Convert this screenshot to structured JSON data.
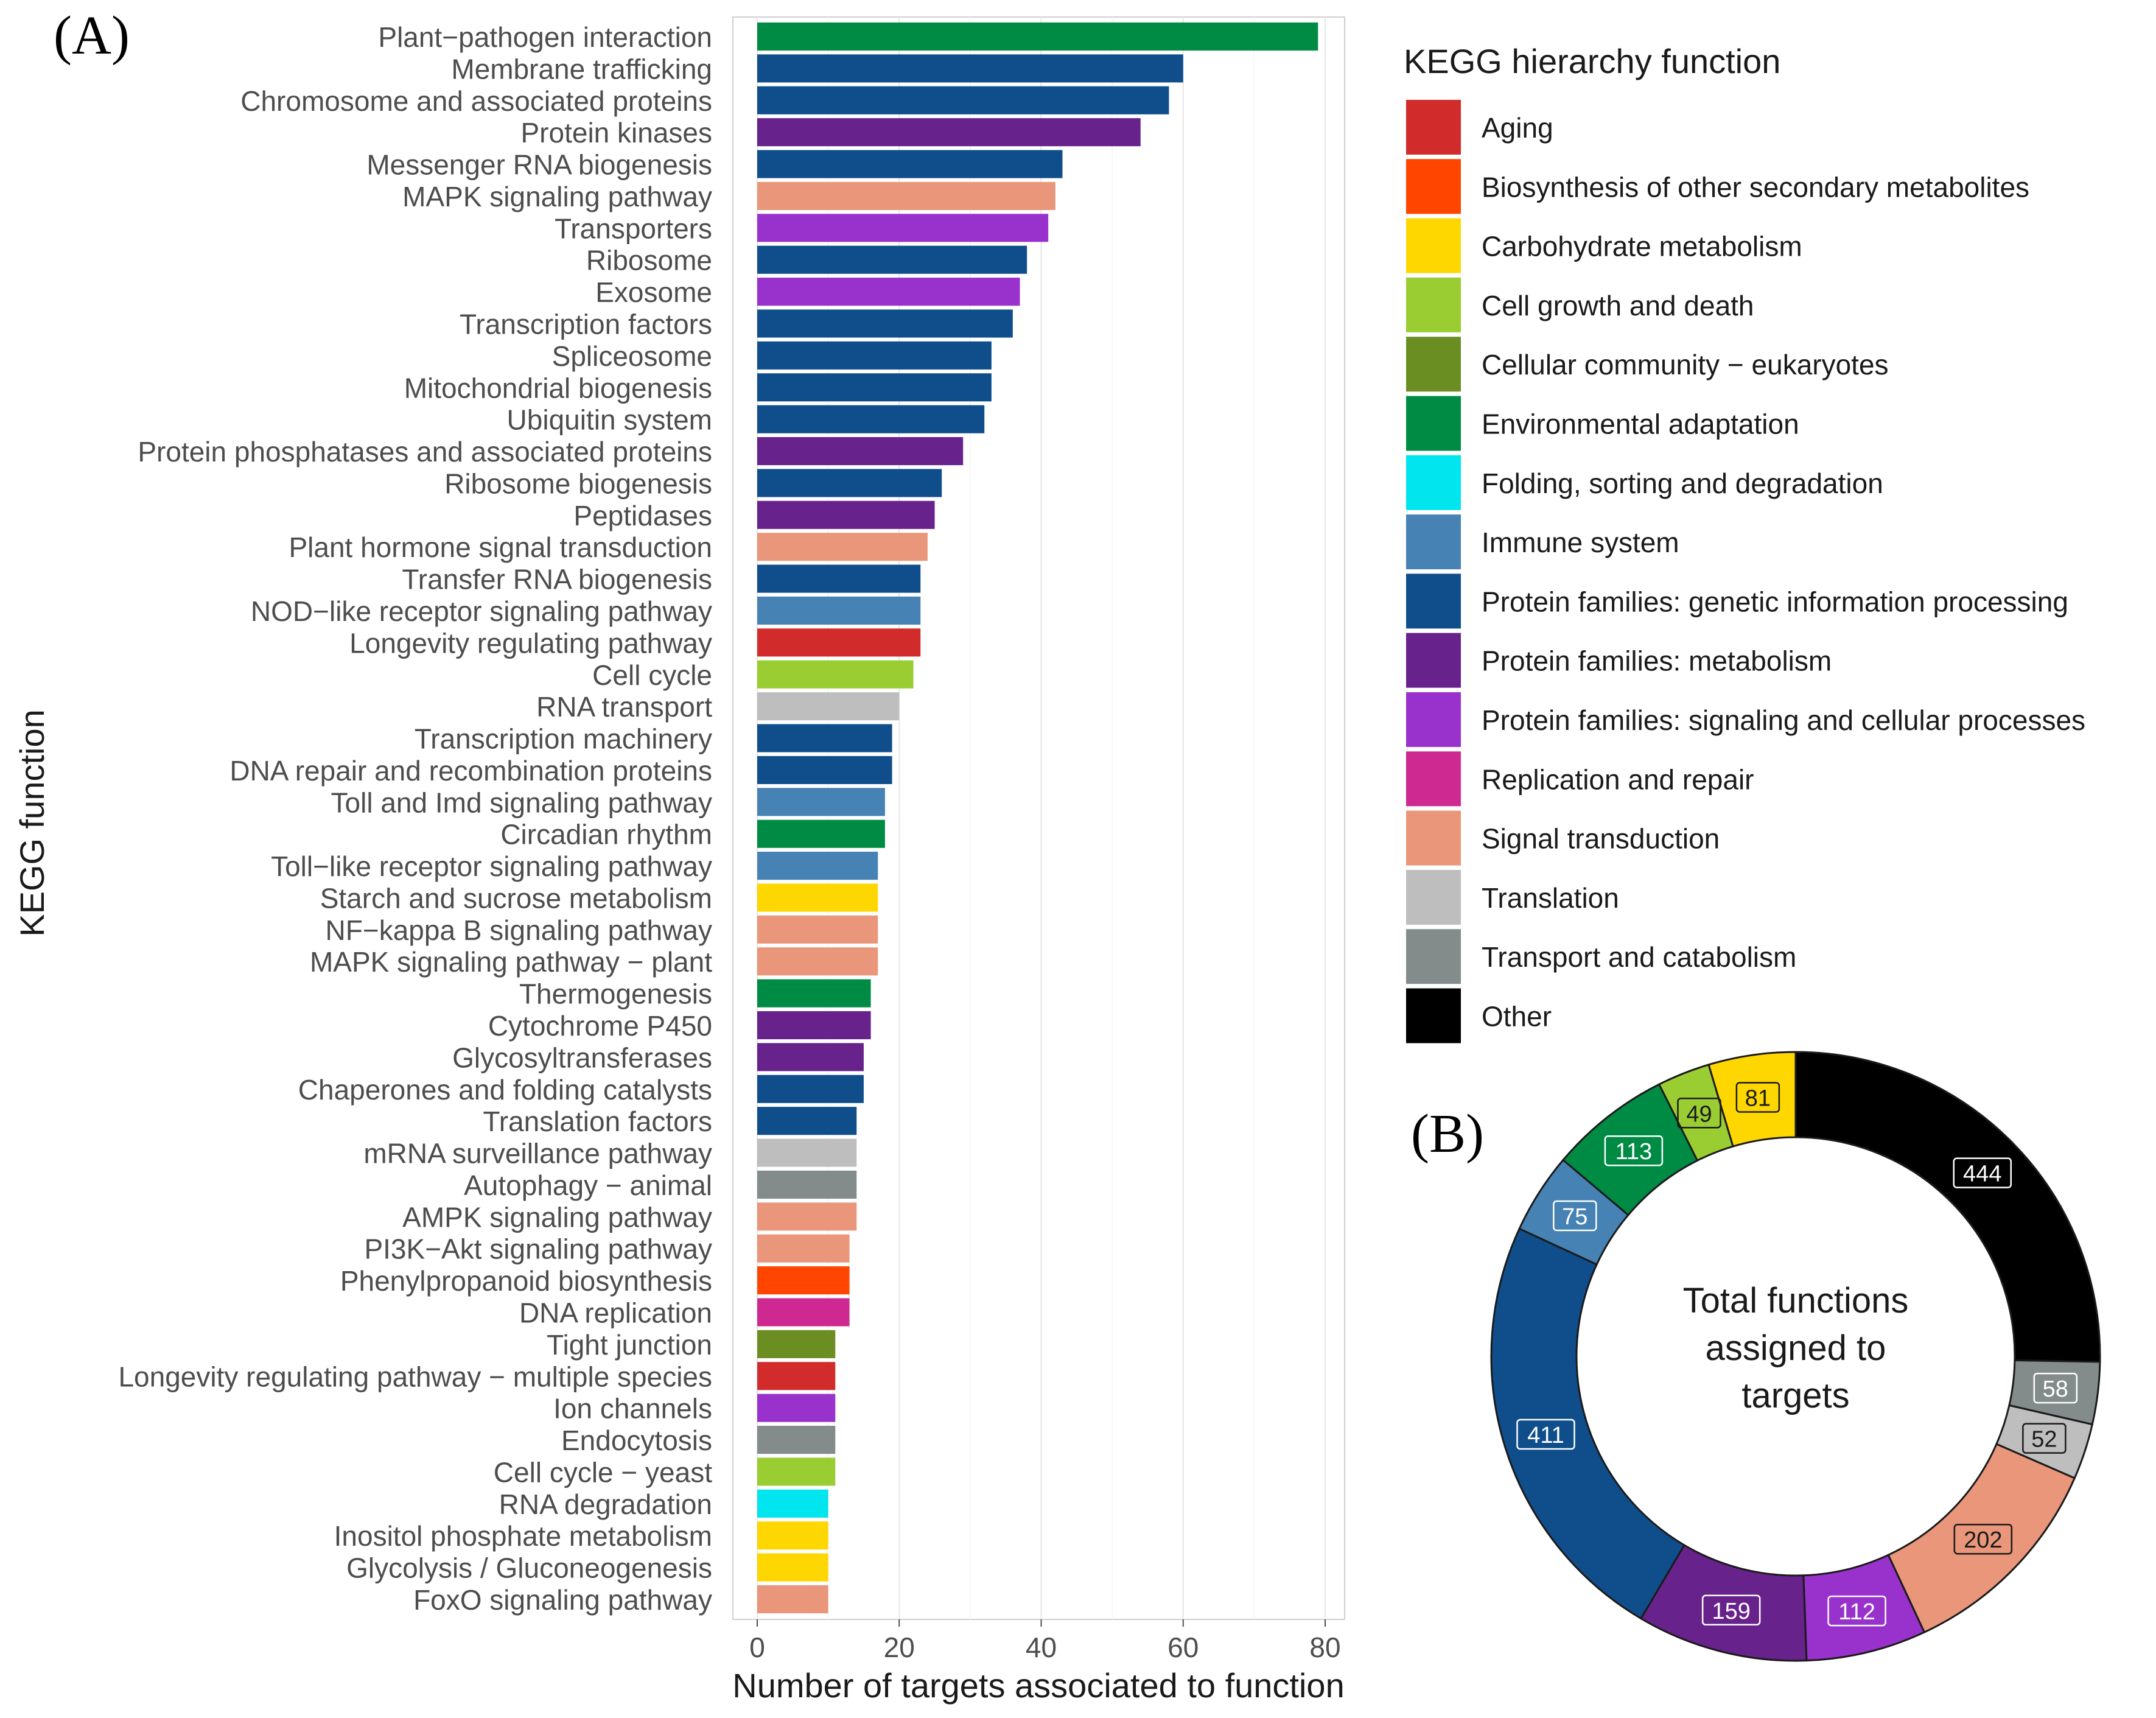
{
  "panel_labels": {
    "a": "(A)",
    "b": "(B)"
  },
  "colors": {
    "Aging": "#d22b2b",
    "Biosynthesis of other secondary metabolites": "#ff4500",
    "Carbohydrate metabolism": "#ffd700",
    "Cell growth and death": "#9acd32",
    "Cellular community - eukaryotes": "#6b8e23",
    "Environmental adaptation": "#008b45",
    "Folding, sorting and degradation": "#00e5ee",
    "Immune system": "#4682b4",
    "Protein families: genetic information processing": "#104e8b",
    "Protein families: metabolism": "#68228b",
    "Protein families: signaling and cellular processes": "#9932cc",
    "Replication and repair": "#cd2990",
    "Signal transduction": "#e9967a",
    "Translation": "#bebebe",
    "Transport and catabolism": "#838b8b",
    "Other": "#000000"
  },
  "chart_data": [
    {
      "type": "bar",
      "orientation": "horizontal",
      "xlabel": "Number of targets associated to function",
      "ylabel": "KEGG function",
      "xlim": [
        0,
        80
      ],
      "xticks": [
        0,
        20,
        40,
        60,
        80
      ],
      "grid": true,
      "categories": [
        "Plant−pathogen interaction",
        "Membrane trafficking",
        "Chromosome and associated proteins",
        "Protein kinases",
        "Messenger RNA biogenesis",
        "MAPK signaling pathway",
        "Transporters",
        "Ribosome",
        "Exosome",
        "Transcription factors",
        "Spliceosome",
        "Mitochondrial biogenesis",
        "Ubiquitin system",
        "Protein phosphatases and associated proteins",
        "Ribosome biogenesis",
        "Peptidases",
        "Plant hormone signal transduction",
        "Transfer RNA biogenesis",
        "NOD−like receptor signaling pathway",
        "Longevity regulating pathway",
        "Cell cycle",
        "RNA transport",
        "Transcription machinery",
        "DNA repair and recombination proteins",
        "Toll and Imd signaling pathway",
        "Circadian rhythm",
        "Toll−like receptor signaling pathway",
        "Starch and sucrose metabolism",
        "NF−kappa B signaling pathway",
        "MAPK signaling pathway − plant",
        "Thermogenesis",
        "Cytochrome P450",
        "Glycosyltransferases",
        "Chaperones and folding catalysts",
        "Translation factors",
        "mRNA surveillance pathway",
        "Autophagy − animal",
        "AMPK signaling pathway",
        "PI3K−Akt signaling pathway",
        "Phenylpropanoid biosynthesis",
        "DNA replication",
        "Tight junction",
        "Longevity regulating pathway − multiple species",
        "Ion channels",
        "Endocytosis",
        "Cell cycle − yeast",
        "RNA degradation",
        "Inositol phosphate metabolism",
        "Glycolysis / Gluconeogenesis",
        "FoxO signaling pathway"
      ],
      "values": [
        79,
        60,
        58,
        54,
        43,
        42,
        41,
        38,
        37,
        36,
        33,
        33,
        32,
        29,
        26,
        25,
        24,
        23,
        23,
        23,
        22,
        20,
        19,
        19,
        18,
        18,
        17,
        17,
        17,
        17,
        16,
        16,
        15,
        15,
        14,
        14,
        14,
        14,
        13,
        13,
        13,
        11,
        11,
        11,
        11,
        11,
        10,
        10,
        10,
        10
      ],
      "groups": [
        "Environmental adaptation",
        "Protein families: genetic information processing",
        "Protein families: genetic information processing",
        "Protein families: metabolism",
        "Protein families: genetic information processing",
        "Signal transduction",
        "Protein families: signaling and cellular processes",
        "Protein families: genetic information processing",
        "Protein families: signaling and cellular processes",
        "Protein families: genetic information processing",
        "Protein families: genetic information processing",
        "Protein families: genetic information processing",
        "Protein families: genetic information processing",
        "Protein families: metabolism",
        "Protein families: genetic information processing",
        "Protein families: metabolism",
        "Signal transduction",
        "Protein families: genetic information processing",
        "Immune system",
        "Aging",
        "Cell growth and death",
        "Translation",
        "Protein families: genetic information processing",
        "Protein families: genetic information processing",
        "Immune system",
        "Environmental adaptation",
        "Immune system",
        "Carbohydrate metabolism",
        "Signal transduction",
        "Signal transduction",
        "Environmental adaptation",
        "Protein families: metabolism",
        "Protein families: metabolism",
        "Protein families: genetic information processing",
        "Protein families: genetic information processing",
        "Translation",
        "Transport and catabolism",
        "Signal transduction",
        "Signal transduction",
        "Biosynthesis of other secondary metabolites",
        "Replication and repair",
        "Cellular community - eukaryotes",
        "Aging",
        "Protein families: signaling and cellular processes",
        "Transport and catabolism",
        "Cell growth and death",
        "Folding, sorting and degradation",
        "Carbohydrate metabolism",
        "Carbohydrate metabolism",
        "Signal transduction"
      ]
    },
    {
      "type": "pie",
      "style": "donut",
      "center_text": [
        "Total functions",
        "assigned to",
        "targets"
      ],
      "slices": [
        {
          "group": "Other",
          "value": 444,
          "label": "444"
        },
        {
          "group": "Transport and catabolism",
          "value": 58,
          "label": "58"
        },
        {
          "group": "Translation",
          "value": 52,
          "label": "52"
        },
        {
          "group": "Signal transduction",
          "value": 202,
          "label": "202"
        },
        {
          "group": "Protein families: signaling and cellular processes",
          "value": 112,
          "label": "112"
        },
        {
          "group": "Protein families: metabolism",
          "value": 159,
          "label": "159"
        },
        {
          "group": "Protein families: genetic information processing",
          "value": 411,
          "label": "411"
        },
        {
          "group": "Immune system",
          "value": 75,
          "label": "75"
        },
        {
          "group": "Environmental adaptation",
          "value": 113,
          "label": "113"
        },
        {
          "group": "Cell growth and death",
          "value": 49,
          "label": "49"
        },
        {
          "group": "Carbohydrate metabolism",
          "value": 81,
          "label": "81"
        }
      ]
    }
  ],
  "legend": {
    "title": "KEGG hierarchy function",
    "position": "right",
    "items": [
      {
        "key": "Aging",
        "label": "Aging"
      },
      {
        "key": "Biosynthesis of other secondary metabolites",
        "label": "Biosynthesis of other secondary metabolites"
      },
      {
        "key": "Carbohydrate metabolism",
        "label": "Carbohydrate metabolism"
      },
      {
        "key": "Cell growth and death",
        "label": "Cell growth and death"
      },
      {
        "key": "Cellular community - eukaryotes",
        "label": "Cellular community − eukaryotes"
      },
      {
        "key": "Environmental adaptation",
        "label": "Environmental adaptation"
      },
      {
        "key": "Folding, sorting and degradation",
        "label": "Folding, sorting and degradation"
      },
      {
        "key": "Immune system",
        "label": "Immune system"
      },
      {
        "key": "Protein families: genetic information processing",
        "label": "Protein families: genetic information processing"
      },
      {
        "key": "Protein families: metabolism",
        "label": "Protein families: metabolism"
      },
      {
        "key": "Protein families: signaling and cellular processes",
        "label": "Protein families: signaling and cellular processes"
      },
      {
        "key": "Replication and repair",
        "label": "Replication and repair"
      },
      {
        "key": "Signal transduction",
        "label": "Signal transduction"
      },
      {
        "key": "Translation",
        "label": "Translation"
      },
      {
        "key": "Transport and catabolism",
        "label": "Transport and catabolism"
      },
      {
        "key": "Other",
        "label": "Other"
      }
    ]
  }
}
